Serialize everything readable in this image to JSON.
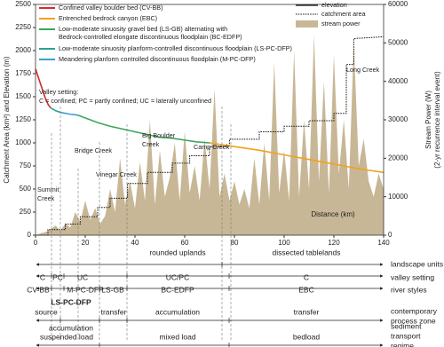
{
  "chart_data": {
    "type": "line",
    "y_label": "Catchment Area (km²) and Elevation (m)",
    "y2_label": [
      "Stream Power (W)",
      "(2-yr recurrence interval event)"
    ],
    "x_label": "Distance (km)",
    "xlim": [
      0,
      140
    ],
    "xticks": [
      0,
      20,
      40,
      60,
      80,
      100,
      120,
      140
    ],
    "ylim": [
      0,
      2500
    ],
    "yticks": [
      0,
      250,
      500,
      750,
      1000,
      1250,
      1500,
      1750,
      2000,
      2250,
      2500
    ],
    "y2lim": [
      0,
      60000
    ],
    "y2ticks": [
      0,
      10000,
      20000,
      30000,
      40000,
      50000,
      60000
    ],
    "series": [
      {
        "name": [
          "Confined valley boulder bed (CV-BB)"
        ],
        "color": "#d7282f",
        "x": [
          0,
          1,
          2,
          3,
          4,
          5,
          6
        ],
        "values": [
          1800,
          1720,
          1640,
          1560,
          1480,
          1420,
          1380
        ]
      },
      {
        "name": [
          "Entrenched bedrock canyon (EBC)"
        ],
        "color": "#f0a21c",
        "x": [
          70,
          80,
          90,
          100,
          110,
          120,
          130,
          140
        ],
        "values": [
          1000,
          960,
          920,
          870,
          820,
          770,
          720,
          680
        ]
      },
      {
        "name": [
          "Low-moderate sinuosity gravel bed (LS-GB) alternating with",
          "Bedrock-controlled elongate discontinuous floodplain (BC-EDFP)"
        ],
        "color": "#3da55d",
        "x": [
          17,
          20,
          25,
          30,
          35,
          40,
          45,
          50,
          55,
          60,
          65,
          70
        ],
        "values": [
          1300,
          1270,
          1220,
          1180,
          1150,
          1120,
          1090,
          1060,
          1050,
          1030,
          1010,
          1000
        ]
      },
      {
        "name": [
          "Low-moderate sinuosity planform-controlled discontinuous floodplain (LS-PC-DFP)"
        ],
        "color": "#2aa58c",
        "x": [
          6,
          8,
          10
        ],
        "values": [
          1380,
          1350,
          1330
        ]
      },
      {
        "name": [
          "Meandering planform controlled discontinuous floodplain (M-PC-DFP)"
        ],
        "color": "#3a9fd6",
        "x": [
          10,
          12,
          14,
          16,
          17
        ],
        "values": [
          1330,
          1320,
          1310,
          1305,
          1300
        ]
      }
    ],
    "elevation_legend": "elevation",
    "catchment": {
      "name": "catchment area",
      "color": "#111111",
      "x": [
        0,
        5,
        5,
        12,
        12,
        18,
        18,
        25,
        25,
        30,
        30,
        37,
        37,
        45,
        45,
        55,
        55,
        62,
        62,
        70,
        70,
        78,
        78,
        90,
        90,
        100,
        100,
        110,
        110,
        120,
        120,
        125,
        125,
        128,
        128,
        140
      ],
      "values": [
        0,
        0,
        60,
        60,
        120,
        120,
        200,
        200,
        300,
        300,
        400,
        400,
        560,
        560,
        680,
        680,
        780,
        780,
        860,
        860,
        960,
        960,
        1040,
        1040,
        1120,
        1120,
        1180,
        1180,
        1240,
        1240,
        1320,
        1320,
        1850,
        1850,
        2130,
        2150
      ]
    },
    "stream_power": {
      "name": "stream power",
      "color": "#c8b796",
      "axis": "y2",
      "x": [
        0,
        2,
        4,
        6,
        8,
        10,
        12,
        14,
        16,
        18,
        20,
        22,
        24,
        26,
        28,
        30,
        32,
        34,
        36,
        38,
        40,
        42,
        44,
        46,
        48,
        50,
        52,
        54,
        56,
        58,
        60,
        62,
        64,
        66,
        68,
        70,
        72,
        74,
        76,
        78,
        80,
        82,
        84,
        86,
        88,
        90,
        92,
        94,
        96,
        98,
        100,
        102,
        104,
        106,
        108,
        110,
        112,
        114,
        116,
        118,
        120,
        122,
        124,
        126,
        128,
        130,
        132,
        134,
        136,
        138,
        140
      ],
      "values": [
        0,
        500,
        800,
        1500,
        2500,
        1200,
        3000,
        2000,
        6000,
        3500,
        9000,
        4000,
        7000,
        3000,
        5000,
        12000,
        6000,
        20000,
        8000,
        14000,
        7000,
        19000,
        9000,
        30000,
        8000,
        22000,
        10000,
        15000,
        24000,
        9000,
        27000,
        11000,
        18000,
        9000,
        25000,
        12000,
        38000,
        10000,
        16000,
        9000,
        14000,
        8000,
        12000,
        7000,
        20000,
        8000,
        24000,
        9000,
        45000,
        11000,
        22000,
        9000,
        48000,
        10000,
        30000,
        12000,
        52000,
        14000,
        40000,
        11000,
        47000,
        16000,
        30000,
        12000,
        50000,
        18000,
        25000,
        14000,
        10000,
        16000,
        12000
      ]
    },
    "valley_note": [
      "Valley setting:",
      "C = confined; PC = partly confined; UC =  laterally unconfined"
    ],
    "annotations": [
      [
        "Bridge Creek"
      ],
      [
        "Summit",
        "Creek"
      ],
      [
        "Vinegar Creek"
      ],
      [
        "Big Boulder",
        "Creek"
      ],
      [
        "Camp Creek"
      ],
      [
        "Long Creek"
      ]
    ]
  },
  "zones": [
    {
      "label": [
        "landscape units"
      ],
      "items": [
        "rounded uplands",
        "dissected tablelands"
      ]
    },
    {
      "label": [
        "valley setting"
      ],
      "items": [
        "C",
        "PC",
        "UC",
        "UC/PC",
        "C"
      ]
    },
    {
      "label": [
        "river styles"
      ],
      "items": [
        "CV-BB",
        "LS-PC-DFP",
        "M-PC-DFP",
        "LS-GB",
        "BC-EDFP",
        "EBC"
      ]
    },
    {
      "label": [
        "contemporary",
        "process zone"
      ],
      "items": [
        "source",
        "accumulation",
        "transfer",
        "accumulation",
        "transfer"
      ]
    },
    {
      "label": [
        "sediment",
        "transport",
        "regime"
      ],
      "items": [
        "suspended load",
        "mixed load",
        "bedload"
      ]
    }
  ]
}
